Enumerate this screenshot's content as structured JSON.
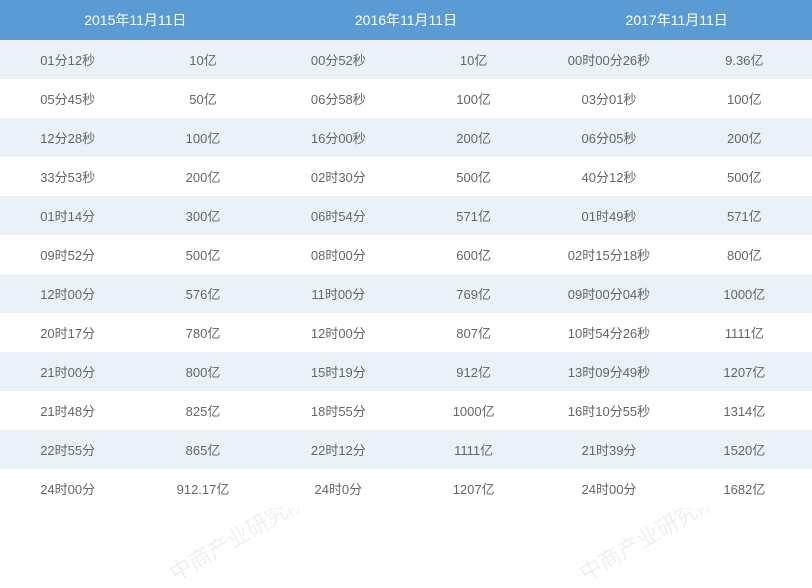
{
  "colors": {
    "header_bg": "#5b9bd5",
    "header_text": "#ffffff",
    "row_odd_bg": "#eaf1f9",
    "row_even_bg": "#ffffff",
    "cell_text": "#666666"
  },
  "watermark_text": "中商产业研究院 www.chnci.com",
  "headers": [
    "2015年11月11日",
    "2016年11月11日",
    "2017年11月11日"
  ],
  "rows": [
    {
      "c": [
        "01分12秒",
        "10亿",
        "00分52秒",
        "10亿",
        "00时00分26秒",
        "9.36亿"
      ]
    },
    {
      "c": [
        "05分45秒",
        "50亿",
        "06分58秒",
        "100亿",
        "03分01秒",
        "100亿"
      ]
    },
    {
      "c": [
        "12分28秒",
        "100亿",
        "16分00秒",
        "200亿",
        "06分05秒",
        "200亿"
      ]
    },
    {
      "c": [
        "33分53秒",
        "200亿",
        "02时30分",
        "500亿",
        "40分12秒",
        "500亿"
      ]
    },
    {
      "c": [
        "01时14分",
        "300亿",
        "06时54分",
        "571亿",
        "01时49秒",
        "571亿"
      ]
    },
    {
      "c": [
        "09时52分",
        "500亿",
        "08时00分",
        "600亿",
        "02时15分18秒",
        "800亿"
      ]
    },
    {
      "c": [
        "12时00分",
        "576亿",
        "11时00分",
        "769亿",
        "09时00分04秒",
        "1000亿"
      ]
    },
    {
      "c": [
        "20时17分",
        "780亿",
        "12时00分",
        "807亿",
        "10时54分26秒",
        "1111亿"
      ]
    },
    {
      "c": [
        "21时00分",
        "800亿",
        "15时19分",
        "912亿",
        "13时09分49秒",
        "1207亿"
      ]
    },
    {
      "c": [
        "21时48分",
        "825亿",
        "18时55分",
        "1000亿",
        "16时10分55秒",
        "1314亿"
      ]
    },
    {
      "c": [
        "22时55分",
        "865亿",
        "22时12分",
        "1111亿",
        "21时39分",
        "1520亿"
      ]
    },
    {
      "c": [
        "24时00分",
        "912.17亿",
        "24时0分",
        "1207亿",
        "24时00分",
        "1682亿"
      ]
    }
  ]
}
